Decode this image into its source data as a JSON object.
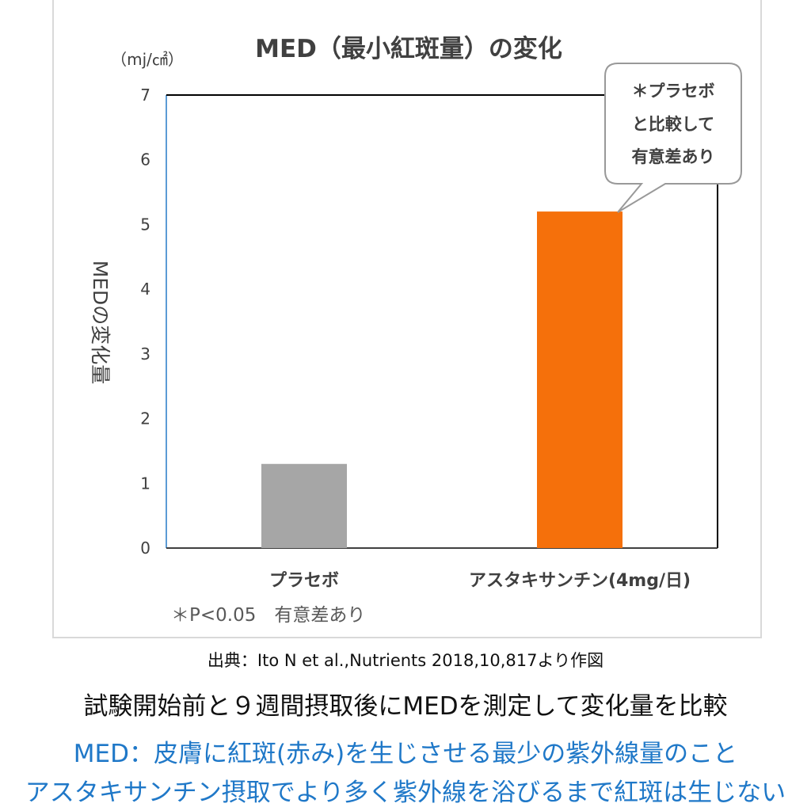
{
  "chart_data": {
    "type": "bar",
    "title": "MED（最小紅斑量）の変化",
    "unit": "（mj/㎠）",
    "ylabel": "MEDの変化量",
    "ylim": [
      0,
      7
    ],
    "yticks": [
      "0",
      "1",
      "2",
      "3",
      "4",
      "5",
      "6",
      "7"
    ],
    "categories": [
      "プラセボ",
      "アスタキサンチン(4mg/日)"
    ],
    "values": [
      1.3,
      5.2
    ],
    "colors": [
      "#a6a6a6",
      "#f5700b"
    ],
    "callout": [
      "＊プラセボ",
      "と比較して",
      "有意差あり"
    ],
    "footnote": "＊P<0.05　有意差あり",
    "grid": false
  },
  "captions": {
    "source": "出典：Ito N et al.,Nutrients 2018,10,817より作図",
    "summary": "試験開始前と９週間摂取後にMEDを測定して変化量を比較",
    "definition": "MED：皮膚に紅斑(赤み)を生じさせる最少の紫外線量のこと",
    "note": "アスタキサンチン摂取でより多く紫外線を浴びるまで紅斑は生じない"
  }
}
